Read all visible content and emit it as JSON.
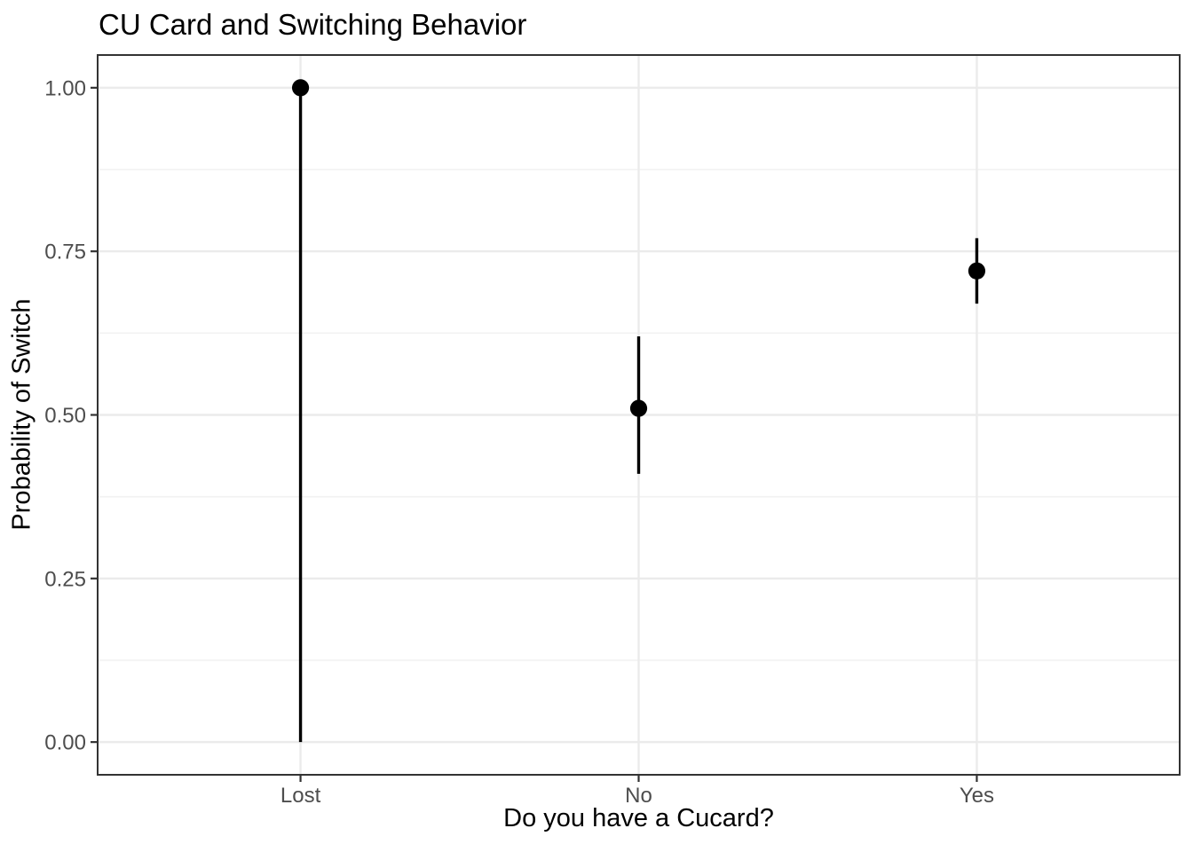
{
  "chart_data": {
    "type": "scatter",
    "subtype": "pointrange",
    "title": "CU Card and Switching Behavior",
    "xlabel": "Do you have a Cucard?",
    "ylabel": "Probability of Switch",
    "categories": [
      "Lost",
      "No",
      "Yes"
    ],
    "points": [
      {
        "category": "Lost",
        "estimate": 1.0,
        "lower": 0.0,
        "upper": 1.0
      },
      {
        "category": "No",
        "estimate": 0.51,
        "lower": 0.41,
        "upper": 0.62
      },
      {
        "category": "Yes",
        "estimate": 0.72,
        "lower": 0.67,
        "upper": 0.77
      }
    ],
    "ylim": [
      0,
      1
    ],
    "yticks": [
      0,
      0.25,
      0.5,
      0.75,
      1
    ],
    "ytick_labels": [
      "0.00",
      "0.25",
      "0.50",
      "0.75",
      "1.00"
    ],
    "yminor": [
      0.125,
      0.375,
      0.625,
      0.875
    ],
    "grid": true,
    "legend": "none",
    "style": {
      "point_color": "#000000",
      "range_line_color": "#000000",
      "major_grid_color": "#ebebeb",
      "minor_grid_color": "#f2f2f2",
      "panel_border_color": "#333333",
      "panel_background": "#ffffff",
      "tick_color": "#333333",
      "tick_label_color": "#4d4d4d",
      "title_color": "#000000",
      "axis_title_color": "#000000",
      "figure_background": "#ffffff"
    }
  }
}
